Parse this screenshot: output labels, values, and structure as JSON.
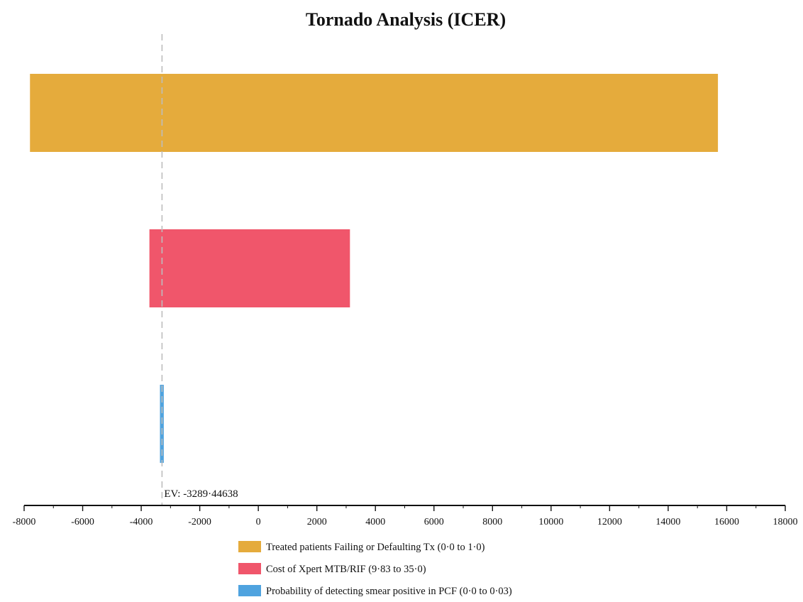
{
  "chart_data": {
    "type": "bar",
    "subtype": "tornado",
    "title": "Tornado Analysis (ICER)",
    "xlabel": "",
    "ylabel": "",
    "xlim": [
      -8000,
      18000
    ],
    "x_ticks": [
      -8000,
      -6000,
      -4000,
      -2000,
      0,
      2000,
      4000,
      6000,
      8000,
      10000,
      12000,
      14000,
      16000,
      18000
    ],
    "expected_value": -3289.44638,
    "ev_label": "EV: -3289·44638",
    "grid": false,
    "legend_position": "bottom-center",
    "series": [
      {
        "name": "Treated patients Failing or Defaulting Tx (0·0 to 1·0)",
        "low": -7800,
        "high": 15700,
        "color": "#E5AB3C"
      },
      {
        "name": "Cost of Xpert MTB/RIF (9·83 to 35·0)",
        "low": -3720,
        "high": 3130,
        "color": "#F0566B"
      },
      {
        "name": "Probability of detecting smear positive in PCF (0·0 to 0·03)",
        "low": -3360,
        "high": -3230,
        "color": "#4FA3DF"
      }
    ]
  }
}
